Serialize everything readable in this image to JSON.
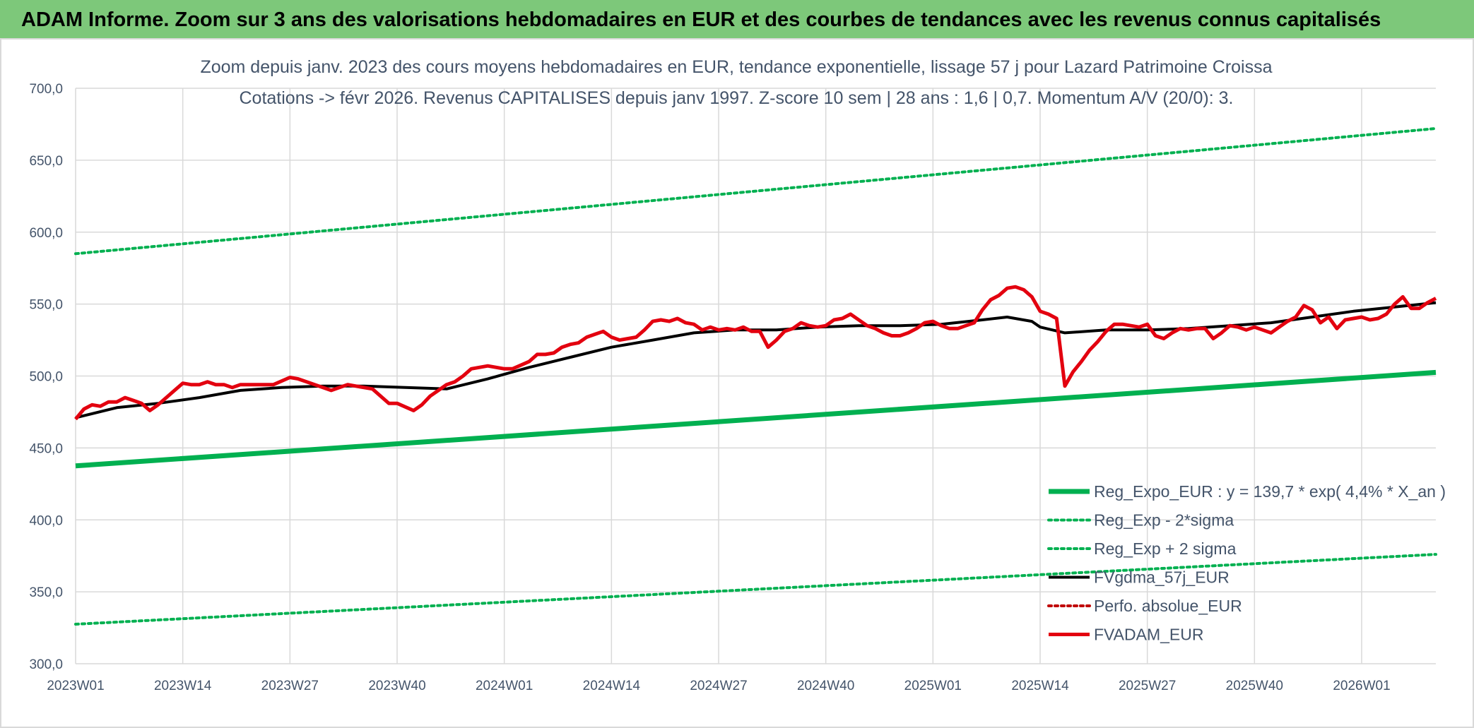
{
  "header": {
    "banner_title": "ADAM Informe. Zoom sur 3 ans des valorisations hebdomadaires en EUR et des courbes de tendances avec les revenus connus capitalisés"
  },
  "colors": {
    "banner_bg": "#7dc87a",
    "trend_green": "#00b050",
    "smooth_black": "#000000",
    "value_red": "#e3000f",
    "perf_red": "#c00000",
    "grid": "#d9d9d9",
    "text": "#44546a"
  },
  "chart_data": {
    "type": "line",
    "title": "Zoom depuis janv. 2023 des cours moyens hebdomadaires en EUR, tendance exponentielle, lissage 57 j pour Lazard Patrimoine Croissa",
    "subtitle": "Cotations -> févr 2026. Revenus CAPITALISES depuis janv 1997. Z-score 10 sem | 28 ans : 1,6 | 0,7. Momentum A/V (20/0): 3.",
    "xlabel": "",
    "ylabel": "",
    "ylim": [
      300,
      700
    ],
    "ytick_labels": [
      "300,0",
      "350,0",
      "400,0",
      "450,0",
      "500,0",
      "550,0",
      "600,0",
      "650,0",
      "700,0"
    ],
    "x_tick_labels": [
      "2023W01",
      "2023W14",
      "2023W27",
      "2023W40",
      "2024W01",
      "2024W14",
      "2024W27",
      "2024W40",
      "2025W01",
      "2025W14",
      "2025W27",
      "2025W40",
      "2026W01"
    ],
    "weeks_span": [
      0,
      165
    ],
    "grid": true,
    "legend_position": "bottom-right",
    "series": [
      {
        "name": "Reg_Expo_EUR : y = 139,7 * exp( 4,4% *  X_an )",
        "style": "solid-thick",
        "color": "#00b050",
        "x": [
          0,
          165
        ],
        "values": [
          437.5,
          502.5
        ]
      },
      {
        "name": "Reg_Exp - 2*sigma",
        "style": "dotted",
        "color": "#00b050",
        "x": [
          0,
          165
        ],
        "values": [
          327.5,
          376.0
        ]
      },
      {
        "name": "Reg_Exp + 2 sigma",
        "style": "dotted",
        "color": "#00b050",
        "x": [
          0,
          165
        ],
        "values": [
          585.0,
          672.0
        ]
      },
      {
        "name": "FVgdma_57j_EUR",
        "style": "solid",
        "color": "#000000",
        "x": [
          0,
          5,
          10,
          15,
          20,
          25,
          30,
          35,
          40,
          45,
          50,
          55,
          60,
          65,
          70,
          75,
          80,
          85,
          90,
          95,
          100,
          105,
          110,
          113,
          116,
          117,
          120,
          125,
          130,
          135,
          140,
          145,
          150,
          155,
          160,
          165
        ],
        "values": [
          471,
          478,
          481,
          485,
          490,
          492,
          493,
          493,
          492,
          491,
          498,
          506,
          513,
          520,
          525,
          530,
          532,
          532,
          534,
          535,
          535,
          536,
          539,
          541,
          538,
          534,
          530,
          532,
          532,
          533,
          535,
          537,
          541,
          545,
          548,
          551
        ]
      },
      {
        "name": "Perfo. absolue_EUR",
        "style": "dotted",
        "color": "#c00000",
        "x": [],
        "values": []
      },
      {
        "name": "FVADAM_EUR",
        "style": "solid-thick",
        "color": "#e3000f",
        "x": [
          0,
          1,
          2,
          3,
          4,
          5,
          6,
          7,
          8,
          9,
          10,
          11,
          12,
          13,
          14,
          15,
          16,
          17,
          18,
          19,
          20,
          22,
          24,
          26,
          27,
          29,
          31,
          33,
          34,
          36,
          38,
          39,
          41,
          42,
          43,
          44,
          45,
          46,
          47,
          48,
          50,
          52,
          53,
          55,
          56,
          57,
          58,
          59,
          60,
          61,
          62,
          63,
          64,
          65,
          66,
          67,
          68,
          69,
          70,
          71,
          72,
          73,
          74,
          75,
          76,
          77,
          78,
          79,
          80,
          81,
          82,
          83,
          84,
          85,
          86,
          87,
          88,
          89,
          90,
          91,
          92,
          93,
          94,
          95,
          96,
          97,
          98,
          99,
          100,
          101,
          102,
          103,
          104,
          105,
          106,
          107,
          108,
          109,
          110,
          111,
          112,
          113,
          114,
          115,
          116,
          117,
          118,
          119,
          120,
          121,
          122,
          123,
          124,
          125,
          126,
          127,
          128,
          129,
          130,
          131,
          132,
          133,
          134,
          135,
          136,
          137,
          138,
          139,
          140,
          141,
          142,
          143,
          144,
          145,
          146,
          147,
          148,
          149,
          150,
          151,
          152,
          153,
          154,
          155,
          156,
          157,
          158,
          159,
          160,
          161,
          162,
          163,
          164,
          165
        ],
        "values": [
          470,
          477,
          480,
          479,
          482,
          482,
          485,
          483,
          481,
          476,
          480,
          485,
          490,
          495,
          494,
          494,
          496,
          494,
          494,
          492,
          494,
          494,
          494,
          499,
          498,
          494,
          490,
          494,
          493,
          491,
          481,
          481,
          476,
          480,
          486,
          490,
          494,
          496,
          500,
          505,
          507,
          505,
          505,
          510,
          515,
          515,
          516,
          520,
          522,
          523,
          527,
          529,
          531,
          527,
          525,
          526,
          527,
          532,
          538,
          539,
          538,
          540,
          537,
          536,
          532,
          534,
          532,
          533,
          532,
          534,
          531,
          531,
          520,
          525,
          531,
          533,
          537,
          535,
          534,
          535,
          539,
          540,
          543,
          539,
          535,
          533,
          530,
          528,
          528,
          530,
          533,
          537,
          538,
          535,
          533,
          533,
          535,
          537,
          546,
          553,
          556,
          561,
          562,
          560,
          555,
          545,
          543,
          540,
          493,
          503,
          510,
          518,
          524,
          531,
          536,
          536,
          535,
          534,
          536,
          528,
          526,
          530,
          533,
          532,
          533,
          533,
          526,
          530,
          535,
          534,
          532,
          534,
          532,
          530,
          534,
          538,
          541,
          549,
          546,
          537,
          541,
          533,
          539,
          540,
          541,
          539,
          540,
          543,
          550,
          555,
          547,
          547,
          551,
          554
        ]
      }
    ]
  }
}
